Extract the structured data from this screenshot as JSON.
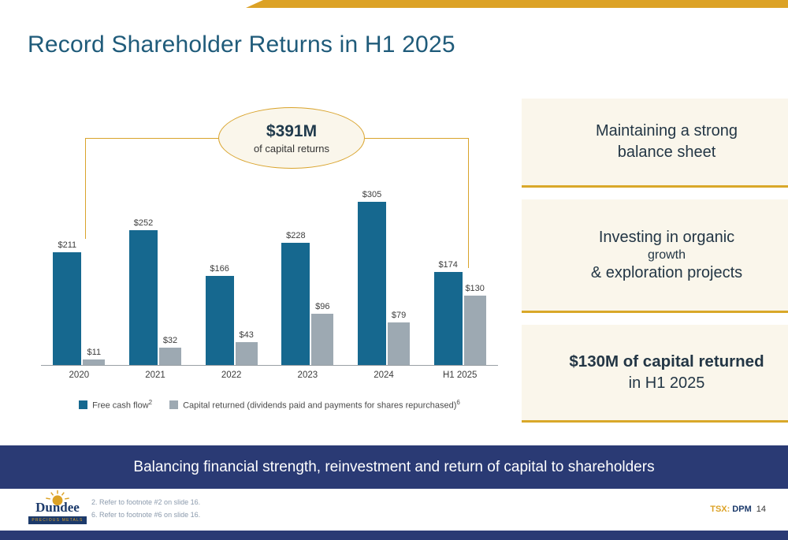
{
  "slide": {
    "title": "Record Shareholder Returns in H1 2025",
    "banner": "Balancing financial strength, reinvestment and return of capital to shareholders",
    "ticker_label": "TSX:",
    "ticker_value": "DPM",
    "page_number": "14"
  },
  "callout": {
    "value": "$391M",
    "caption": "of capital returns"
  },
  "chart_data": {
    "type": "bar",
    "categories": [
      "2020",
      "2021",
      "2022",
      "2023",
      "2024",
      "H1 2025"
    ],
    "series": [
      {
        "name": "Free cash flow",
        "footnote": "2",
        "color": "#16688F",
        "values": [
          211,
          252,
          166,
          228,
          305,
          174
        ]
      },
      {
        "name": "Capital returned (dividends paid and payments for shares repurchased)",
        "footnote": "6",
        "color": "#9DA9B2",
        "values": [
          11,
          32,
          43,
          96,
          79,
          130
        ]
      }
    ],
    "value_prefix": "$",
    "ylim": [
      0,
      330
    ],
    "grid": false,
    "legend_position": "bottom",
    "annotation": "$391M of capital returns spanning 2020 through H1 2025"
  },
  "highlights": [
    {
      "lines": [
        {
          "text": "Maintaining a strong",
          "style": "normal"
        },
        {
          "text": "balance sheet",
          "style": "normal"
        }
      ]
    },
    {
      "lines": [
        {
          "text": "Investing in organic",
          "style": "normal"
        },
        {
          "text": "growth",
          "style": "big-bold"
        },
        {
          "text": "& exploration projects",
          "style": "normal"
        }
      ]
    },
    {
      "lines": [
        {
          "text": "$130M of capital returned",
          "style": "bold"
        },
        {
          "text": "in H1 2025",
          "style": "normal"
        }
      ]
    }
  ],
  "footnotes": [
    "2. Refer to footnote #2 on slide 16.",
    "6. Refer to footnote #6 on slide 16."
  ],
  "logo": {
    "name": "Dundee",
    "subtitle": "PRECIOUS METALS"
  },
  "colors": {
    "accent_gold": "#DCA226",
    "navy": "#2A3A74",
    "teal_bar": "#16688F",
    "gray_bar": "#9DA9B2",
    "cream": "#FAF6EB",
    "title": "#1F5B7A"
  }
}
